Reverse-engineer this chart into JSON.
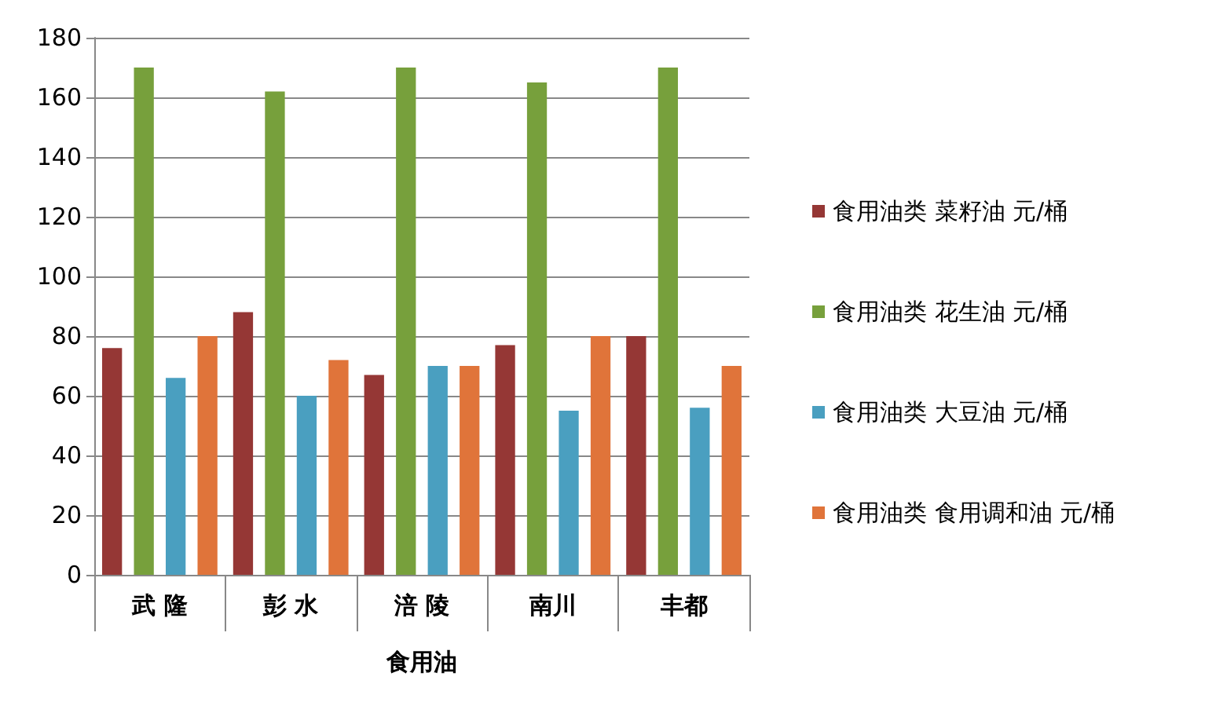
{
  "chart_data": {
    "type": "bar",
    "xlabel": "食用油",
    "categories": [
      "武 隆",
      "彭 水",
      "涪 陵",
      "南川",
      "丰都"
    ],
    "series": [
      {
        "name": "食用油类 菜籽油 元/桶",
        "color": "#953735",
        "values": [
          76,
          88,
          67,
          77,
          80
        ]
      },
      {
        "name": "食用油类 花生油 元/桶",
        "color": "#77a03c",
        "values": [
          170,
          162,
          170,
          165,
          170
        ]
      },
      {
        "name": "食用油类 大豆油 元/桶",
        "color": "#4a9fc0",
        "values": [
          66,
          60,
          70,
          55,
          56
        ]
      },
      {
        "name": "食用油类 食用调和油 元/桶",
        "color": "#e0743a",
        "values": [
          80,
          72,
          70,
          80,
          70
        ]
      }
    ],
    "ylim": [
      0,
      180
    ],
    "yticks": [
      0,
      20,
      40,
      60,
      80,
      100,
      120,
      140,
      160,
      180
    ],
    "grid": "y",
    "legend": "right"
  }
}
